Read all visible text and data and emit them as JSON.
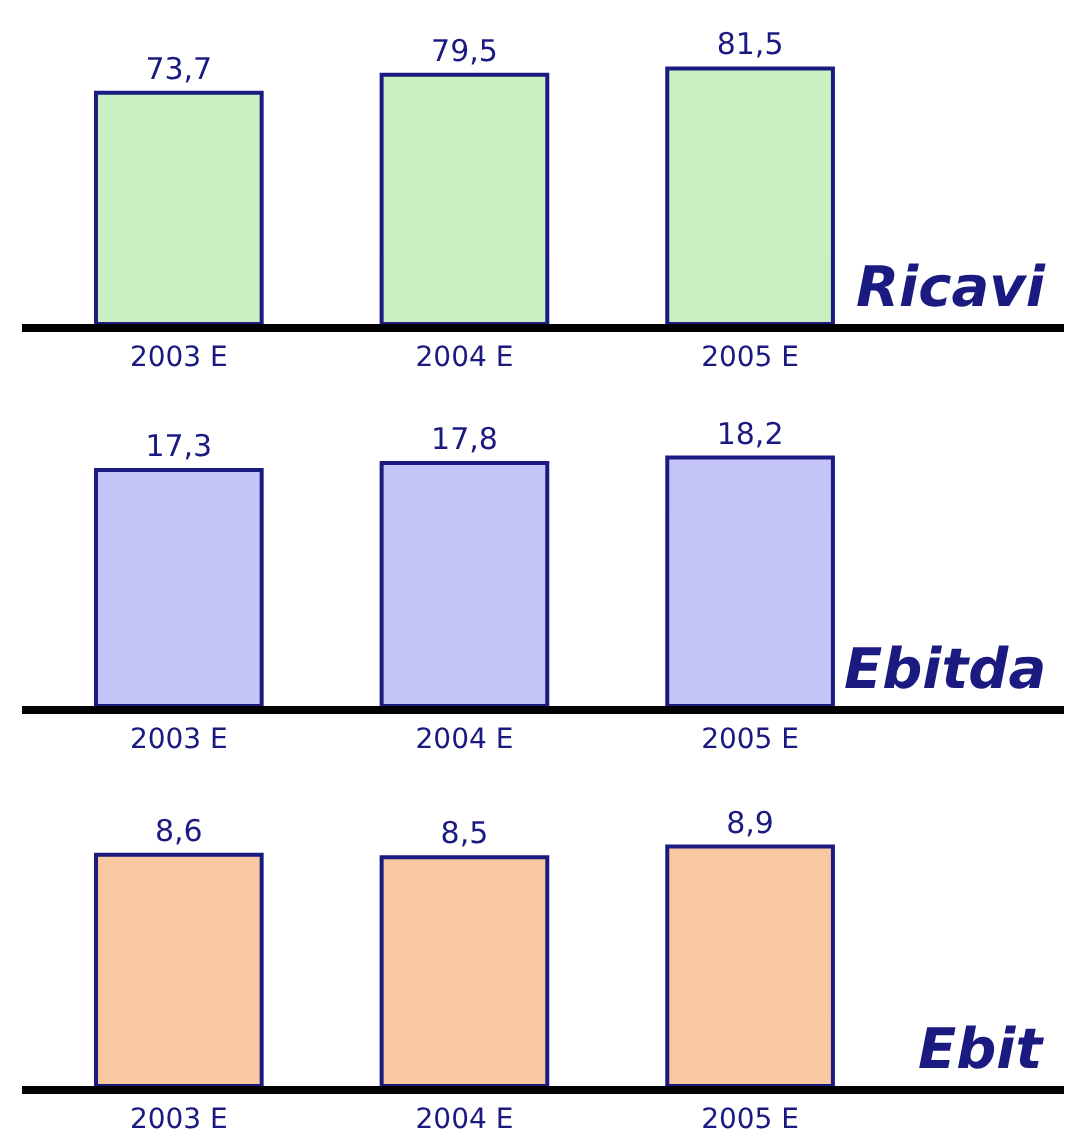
{
  "chart_data": [
    {
      "type": "bar",
      "title": "Ricavi",
      "categories": [
        "2003 E",
        "2004 E",
        "2005 E"
      ],
      "values": [
        73.7,
        79.5,
        81.5
      ],
      "value_labels": [
        "73,7",
        "79,5",
        "81,5"
      ],
      "color": "#c8f0c0",
      "tick_labels": "x"
    },
    {
      "type": "bar",
      "title": "Ebitda",
      "categories": [
        "2003 E",
        "2004 E",
        "2005 E"
      ],
      "values": [
        17.3,
        17.8,
        18.2
      ],
      "value_labels": [
        "17,3",
        "17,8",
        "18,2"
      ],
      "color": "#c4c4f8",
      "tick_labels": "x"
    },
    {
      "type": "bar",
      "title": "Ebit",
      "categories": [
        "2003 E",
        "2004 E",
        "2005 E"
      ],
      "values": [
        8.6,
        8.5,
        8.9
      ],
      "value_labels": [
        "8,6",
        "8,5",
        "8,9"
      ],
      "color": "#f8c8a0",
      "tick_labels": "x"
    }
  ]
}
